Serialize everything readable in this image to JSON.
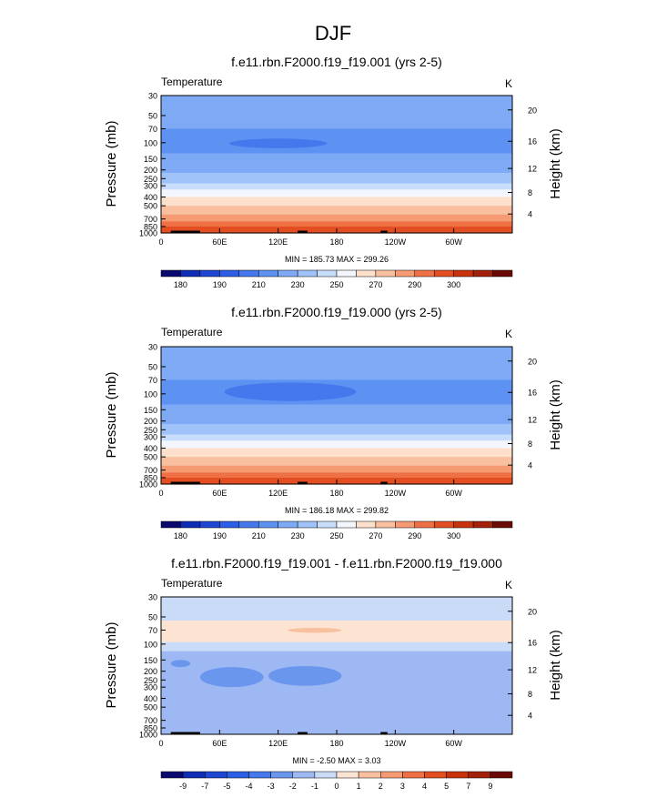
{
  "figure": {
    "title": "DJF",
    "variable": "Temperature",
    "units": "K",
    "ylabel_left": "Pressure (mb)",
    "ylabel_right": "Height (km)",
    "x_ticks": [
      "0",
      "60E",
      "120E",
      "180",
      "120W",
      "60W"
    ],
    "p_ticks": [
      "30",
      "50",
      "70",
      "100",
      "150",
      "200",
      "250",
      "300",
      "400",
      "500",
      "700",
      "850",
      "1000"
    ],
    "h_ticks": [
      "20",
      "16",
      "12",
      "8",
      "4"
    ]
  },
  "chart_data": [
    {
      "type": "heatmap",
      "title": "f.e11.rbn.F2000.f19_f19.001 (yrs 2-5)",
      "variable": "Temperature",
      "units": "K",
      "stats": "MIN = 185.73  MAX = 299.26",
      "min": 185.73,
      "max": 299.26,
      "xlim": [
        0,
        360
      ],
      "ylim_pressure_mb": [
        1000,
        30
      ],
      "levels_mb": [
        30,
        50,
        70,
        100,
        150,
        200,
        250,
        300,
        400,
        500,
        700,
        850,
        1000
      ],
      "profile_K": [
        220,
        215,
        210,
        205,
        212,
        218,
        226,
        233,
        248,
        260,
        276,
        285,
        290
      ],
      "features": [
        {
          "lon": [
            70,
            170
          ],
          "p_mb": [
            90,
            115
          ],
          "value_K": 195
        },
        {
          "lon": [
            215,
            235
          ],
          "p_mb": [
            95,
            108
          ],
          "value_K": 200
        }
      ],
      "colorbar_labels": [
        "180",
        "190",
        "210",
        "230",
        "250",
        "270",
        "290",
        "300"
      ]
    },
    {
      "type": "heatmap",
      "title": "f.e11.rbn.F2000.f19_f19.000 (yrs 2-5)",
      "variable": "Temperature",
      "units": "K",
      "stats": "MIN = 186.18  MAX = 299.82",
      "min": 186.18,
      "max": 299.82,
      "xlim": [
        0,
        360
      ],
      "ylim_pressure_mb": [
        1000,
        30
      ],
      "levels_mb": [
        30,
        50,
        70,
        100,
        150,
        200,
        250,
        300,
        400,
        500,
        700,
        850,
        1000
      ],
      "profile_K": [
        220,
        215,
        210,
        205,
        212,
        218,
        226,
        233,
        248,
        260,
        276,
        285,
        290
      ],
      "features": [
        {
          "lon": [
            65,
            200
          ],
          "p_mb": [
            75,
            120
          ],
          "value_K": 195
        }
      ],
      "colorbar_labels": [
        "180",
        "190",
        "210",
        "230",
        "250",
        "270",
        "290",
        "300"
      ]
    },
    {
      "type": "heatmap",
      "title": "f.e11.rbn.F2000.f19_f19.001 - f.e11.rbn.F2000.f19_f19.000",
      "variable": "Temperature",
      "units": "K",
      "stats": "MIN = -2.50  MAX = 3.03",
      "min": -2.5,
      "max": 3.03,
      "xlim": [
        0,
        360
      ],
      "ylim_pressure_mb": [
        1000,
        30
      ],
      "levels_mb": [
        30,
        50,
        70,
        100,
        150,
        200,
        250,
        300,
        400,
        500,
        700,
        850,
        1000
      ],
      "features": [
        {
          "lon": [
            110,
            200
          ],
          "p_mb": [
            62,
            80
          ],
          "value_K": 1
        },
        {
          "lon": [
            130,
            185
          ],
          "p_mb": [
            66,
            75
          ],
          "value_K": 2
        },
        {
          "lon": [
            40,
            105
          ],
          "p_mb": [
            180,
            300
          ],
          "value_K": -2
        },
        {
          "lon": [
            110,
            185
          ],
          "p_mb": [
            175,
            290
          ],
          "value_K": -2
        },
        {
          "lon": [
            10,
            30
          ],
          "p_mb": [
            150,
            180
          ],
          "value_K": -2
        }
      ],
      "colorbar_labels": [
        "-9",
        "-7",
        "-5",
        "-4",
        "-3",
        "-2",
        "-1",
        "0",
        "1",
        "2",
        "3",
        "4",
        "5",
        "7",
        "9"
      ]
    }
  ],
  "colors": {
    "temperature_scale": [
      "#08086e",
      "#0f2cb6",
      "#1e46d2",
      "#2d5fe6",
      "#4478ec",
      "#5d92f2",
      "#7ea9f5",
      "#9fc3f8",
      "#c7ddfb",
      "#f3f7fd",
      "#fde0cc",
      "#f9c0a0",
      "#f59a73",
      "#ef7045",
      "#e24e22",
      "#c8320d",
      "#a3200a",
      "#6b0a05"
    ],
    "difference_scale": [
      "#08086e",
      "#0f2cb6",
      "#1e46d2",
      "#2d5fe6",
      "#4478ec",
      "#6a96ee",
      "#9db8f2",
      "#c9dbf7",
      "#fde4d2",
      "#f9c0a0",
      "#f59a73",
      "#ef7045",
      "#e24e22",
      "#c8320d",
      "#a3200a",
      "#6b0a05"
    ]
  }
}
